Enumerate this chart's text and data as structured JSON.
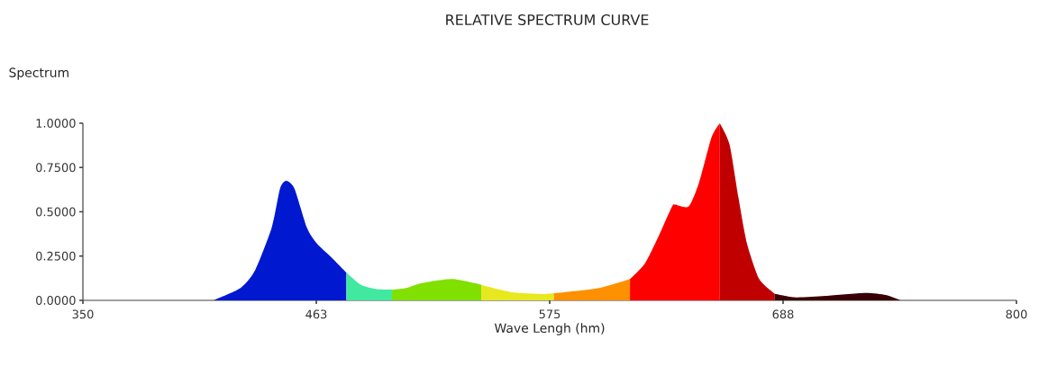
{
  "chart_data": {
    "type": "area",
    "title": "RELATIVE SPECTRUM CURVE",
    "xlabel": "Wave Lengh (hm)",
    "ylabel": "Spectrum",
    "xlim": [
      350,
      800
    ],
    "ylim": [
      0,
      1
    ],
    "xticks": [
      350,
      {
        "value": 462.5,
        "label": "463"
      },
      575,
      {
        "value": 687.5,
        "label": "688"
      },
      800
    ],
    "yticks": [
      {
        "value": 0,
        "label": "0.0000"
      },
      {
        "value": 0.25,
        "label": "0.2500"
      },
      {
        "value": 0.5,
        "label": "0.5000"
      },
      {
        "value": 0.75,
        "label": "0.7500"
      },
      {
        "value": 1,
        "label": "1.0000"
      }
    ],
    "grid": false,
    "marker": "none",
    "series": [
      {
        "color": "#0018d0",
        "x": [
          413,
          426,
          433,
          441,
          445,
          448,
          452,
          458,
          462.5,
          470,
          477
        ],
        "values": [
          0,
          0.07,
          0.17,
          0.41,
          0.63,
          0.675,
          0.63,
          0.41,
          0.325,
          0.24,
          0.157
        ]
      },
      {
        "color": "#40e8a0",
        "x": [
          477,
          484,
          491.6,
          499
        ],
        "values": [
          0.157,
          0.087,
          0.063,
          0.06
        ]
      },
      {
        "color": "#80e000",
        "x": [
          499,
          506,
          513,
          528,
          542
        ],
        "values": [
          0.06,
          0.07,
          0.096,
          0.12,
          0.088
        ]
      },
      {
        "color": "#e8e820",
        "x": [
          542,
          557,
          571.5,
          577
        ],
        "values": [
          0.088,
          0.046,
          0.036,
          0.04
        ]
      },
      {
        "color": "#ff9000",
        "x": [
          577,
          599,
          613.7
        ],
        "values": [
          0.04,
          0.07,
          0.12
        ]
      },
      {
        "color": "#ff0000",
        "x": [
          613.7,
          621,
          628,
          634,
          635.5,
          642,
          647,
          653,
          657
        ],
        "values": [
          0.12,
          0.21,
          0.375,
          0.53,
          0.54,
          0.53,
          0.665,
          0.92,
          1.0
        ]
      },
      {
        "color": "#c00000",
        "x": [
          657,
          661.7,
          666,
          670,
          676,
          683.5
        ],
        "values": [
          1.0,
          0.88,
          0.58,
          0.325,
          0.12,
          0.037
        ]
      },
      {
        "color": "#3a0008",
        "x": [
          683.5,
          693.6,
          708,
          727,
          737,
          744
        ],
        "values": [
          0.037,
          0.017,
          0.025,
          0.042,
          0.03,
          0
        ]
      }
    ]
  }
}
